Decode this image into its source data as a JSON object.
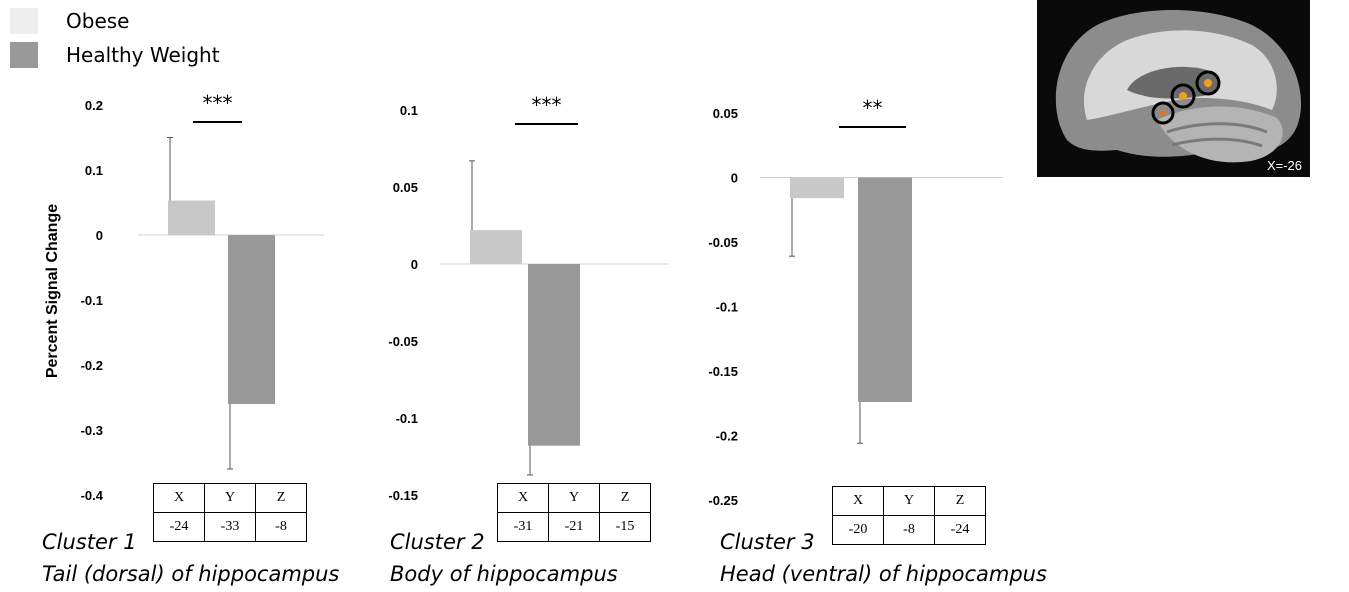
{
  "colors": {
    "obese": "#c8c8c8",
    "healthy": "#999999",
    "obese_legend": "#eeeeee"
  },
  "legend": [
    {
      "name": "Obese",
      "color_key": "obese_legend"
    },
    {
      "name": "Healthy Weight",
      "color_key": "healthy"
    }
  ],
  "ylabel": "Percent Signal Change",
  "brain_image": {
    "label": "X=-26"
  },
  "chart_data": [
    {
      "type": "bar",
      "categories": [
        "Obese",
        "Healthy Weight"
      ],
      "values": [
        0.053,
        -0.26
      ],
      "error_bars": [
        0.097,
        0.1
      ],
      "ylim": [
        -0.4,
        0.2
      ],
      "yticks": [
        "0.2",
        "0.1",
        "0",
        "-0.1",
        "-0.2",
        "-0.3",
        "-0.4"
      ],
      "significance": "***",
      "cluster": "Cluster 1",
      "description": "Tail (dorsal) of hippocampus",
      "coords": {
        "headers": [
          "X",
          "Y",
          "Z"
        ],
        "values": [
          "-24",
          "-33",
          "-8"
        ]
      }
    },
    {
      "type": "bar",
      "categories": [
        "Obese",
        "Healthy Weight"
      ],
      "values": [
        0.022,
        -0.118
      ],
      "error_bars": [
        0.045,
        0.019
      ],
      "ylim": [
        -0.15,
        0.1
      ],
      "yticks": [
        "0.1",
        "0.05",
        "0",
        "-0.05",
        "-0.1",
        "-0.15"
      ],
      "significance": "***",
      "cluster": "Cluster 2",
      "description": "Body of hippocampus",
      "coords": {
        "headers": [
          "X",
          "Y",
          "Z"
        ],
        "values": [
          "-31",
          "-21",
          "-15"
        ]
      }
    },
    {
      "type": "bar",
      "categories": [
        "Obese",
        "Healthy Weight"
      ],
      "values": [
        -0.016,
        -0.174
      ],
      "error_bars": [
        0.045,
        0.032
      ],
      "ylim": [
        -0.25,
        0.05
      ],
      "yticks": [
        "0.05",
        "0",
        "-0.05",
        "-0.1",
        "-0.15",
        "-0.2",
        "-0.25"
      ],
      "significance": "**",
      "cluster": "Cluster 3",
      "description": "Head (ventral) of hippocampus",
      "coords": {
        "headers": [
          "X",
          "Y",
          "Z"
        ],
        "values": [
          "-20",
          "-8",
          "-24"
        ]
      }
    }
  ]
}
